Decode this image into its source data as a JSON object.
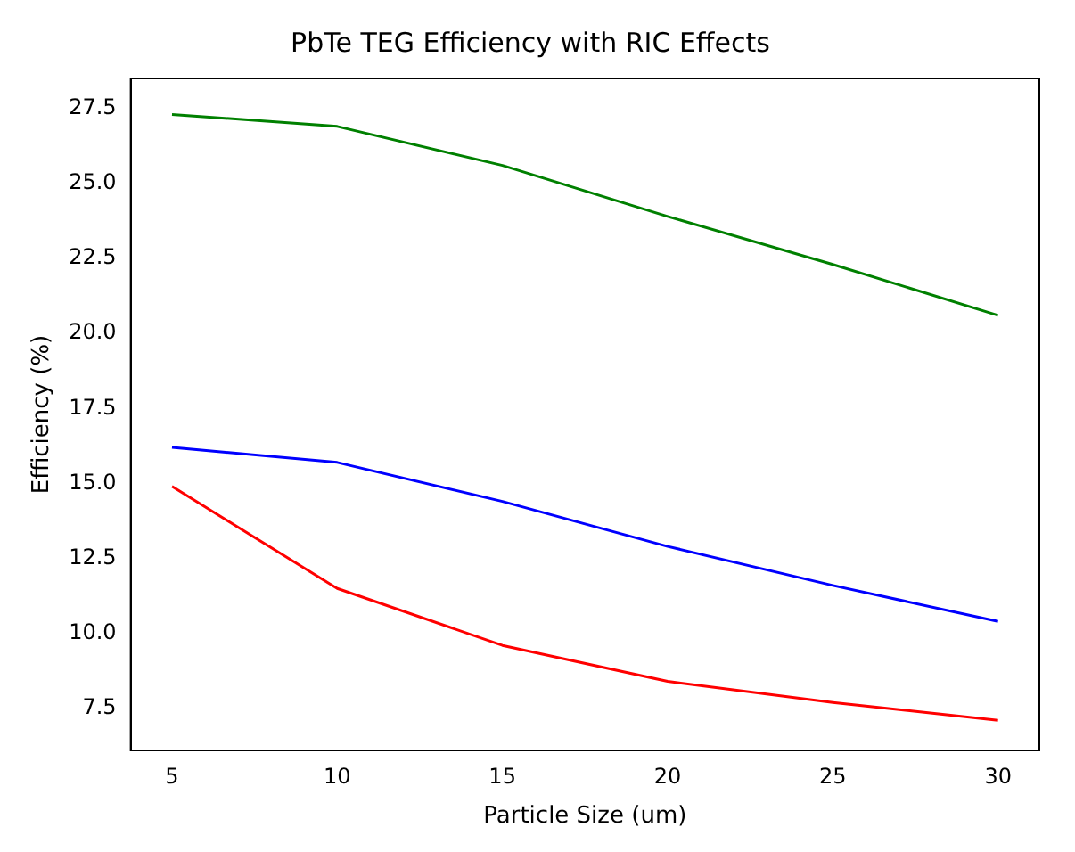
{
  "chart_data": {
    "type": "line",
    "title": "PbTe TEG Efficiency with RIC Effects",
    "xlabel": "Particle Size (um)",
    "ylabel": "Efficiency (%)",
    "x": [
      5,
      10,
      15,
      20,
      25,
      30
    ],
    "series": [
      {
        "color": "#008000",
        "values": [
          27.3,
          26.9,
          25.6,
          23.9,
          22.3,
          20.6
        ]
      },
      {
        "color": "#0000ff",
        "values": [
          16.2,
          15.7,
          14.4,
          12.9,
          11.6,
          10.4
        ]
      },
      {
        "color": "#ff0000",
        "values": [
          14.9,
          11.5,
          9.6,
          8.4,
          7.7,
          7.1
        ]
      }
    ],
    "xlim": [
      3.75,
      31.25
    ],
    "xticks": [
      5,
      10,
      15,
      20,
      25,
      30
    ],
    "ylim": [
      6.1,
      28.5
    ],
    "yticks": [
      {
        "value": 7.5,
        "label": "7.5"
      },
      {
        "value": 10,
        "label": "10.0"
      },
      {
        "value": 12.5,
        "label": "12.5"
      },
      {
        "value": 15,
        "label": "15.0"
      },
      {
        "value": 17.5,
        "label": "17.5"
      },
      {
        "value": 20,
        "label": "20.0"
      },
      {
        "value": 22.5,
        "label": "22.5"
      },
      {
        "value": 25,
        "label": "25.0"
      },
      {
        "value": 27.5,
        "label": "27.5"
      }
    ],
    "grid": false,
    "legend": false,
    "marker": "none",
    "line_style": "solid"
  }
}
